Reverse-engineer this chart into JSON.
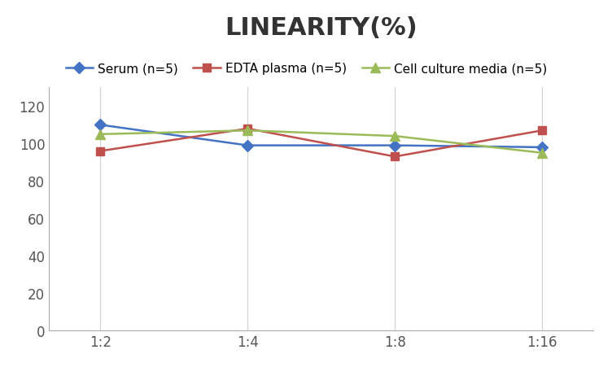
{
  "title": "LINEARITY(%)",
  "x_labels": [
    "1:2",
    "1:4",
    "1:8",
    "1:16"
  ],
  "x_positions": [
    0,
    1,
    2,
    3
  ],
  "series": [
    {
      "label": "Serum (n=5)",
      "values": [
        110,
        99,
        99,
        98
      ],
      "color": "#4472C4",
      "marker": "D",
      "markersize": 7,
      "linewidth": 1.8
    },
    {
      "label": "EDTA plasma (n=5)",
      "values": [
        96,
        108,
        93,
        107
      ],
      "color": "#C0504D",
      "marker": "s",
      "markersize": 7,
      "linewidth": 1.8
    },
    {
      "label": "Cell culture media (n=5)",
      "values": [
        105,
        107,
        104,
        95
      ],
      "color": "#9BBB59",
      "marker": "^",
      "markersize": 8,
      "linewidth": 1.8
    }
  ],
  "ylim": [
    0,
    130
  ],
  "yticks": [
    0,
    20,
    40,
    60,
    80,
    100,
    120
  ],
  "grid_color": "#D0D0D0",
  "background_color": "#FFFFFF",
  "title_fontsize": 22,
  "legend_fontsize": 11,
  "tick_fontsize": 12
}
